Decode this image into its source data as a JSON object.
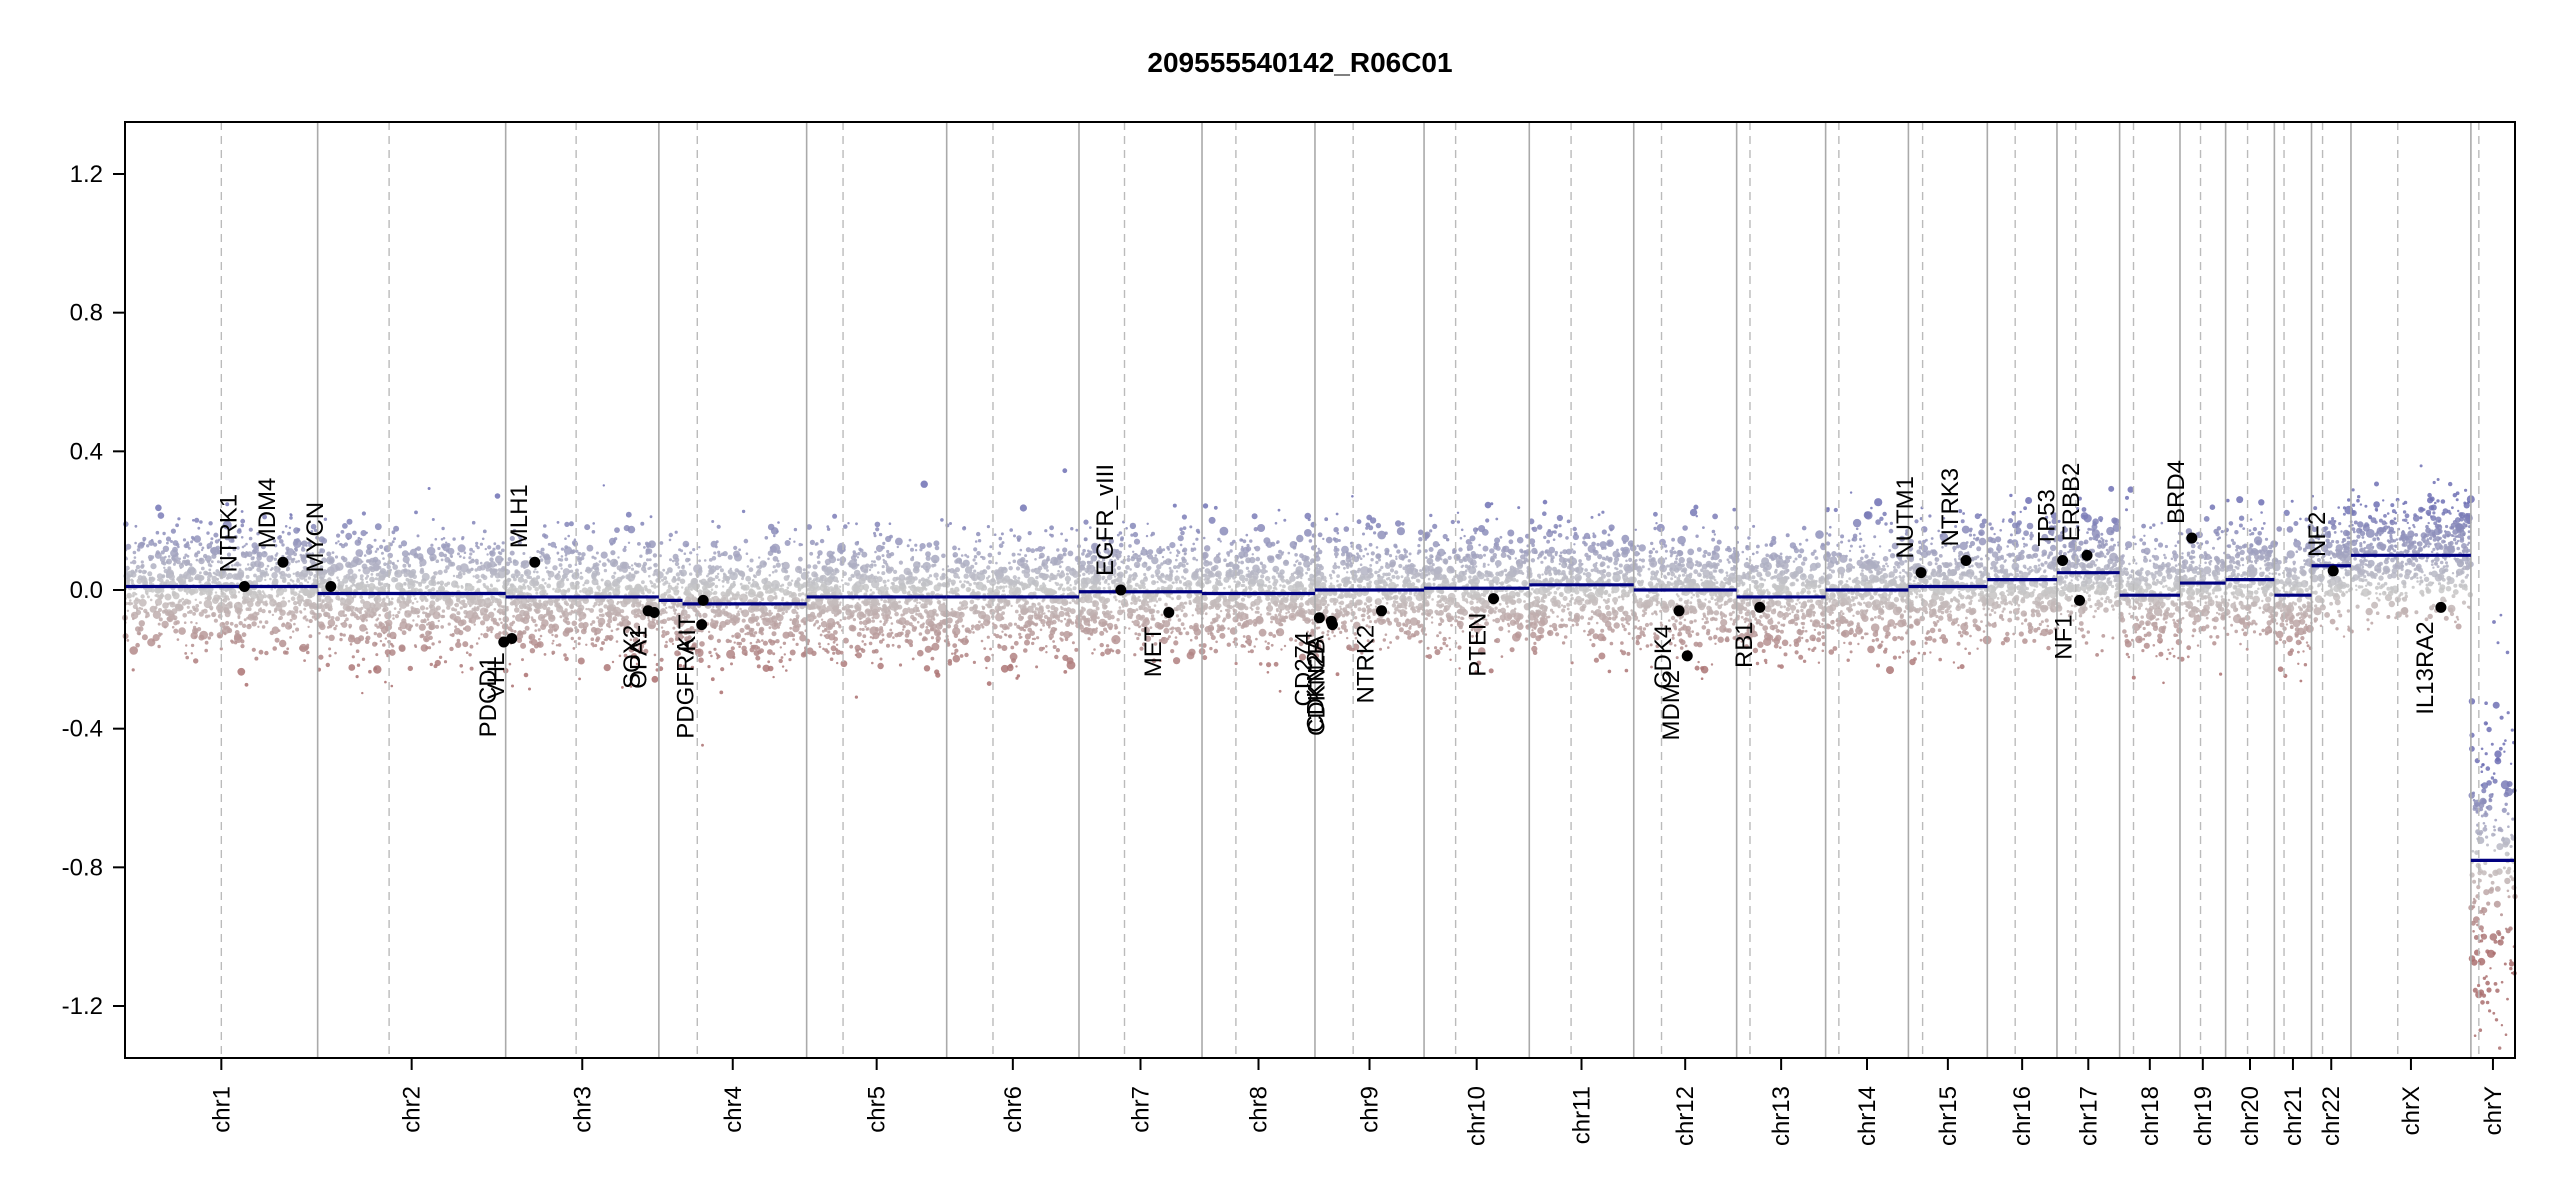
{
  "chart_data": {
    "type": "scatter",
    "title": "209555540142_R06C01",
    "xlabel": "",
    "ylabel": "",
    "ylim": [
      -1.35,
      1.35
    ],
    "y_ticks": [
      -1.2,
      -0.8,
      -0.4,
      0.0,
      0.4,
      0.8,
      1.2
    ],
    "y_tick_labels": [
      "-1.2",
      "-0.8",
      "-0.4",
      "0.0",
      "0.4",
      "0.8",
      "1.2"
    ],
    "grid": false,
    "colors": {
      "gain": "#7b7db8",
      "loss": "#b07878",
      "neutral": "#c8c8c8",
      "segment": "#000080",
      "gene_point": "#000000",
      "chrom_border": "#aaaaaa",
      "centromere": "#bbbbbb"
    },
    "chromosomes": [
      {
        "label": "chr1",
        "length": 249,
        "centromere": 0.5
      },
      {
        "label": "chr2",
        "length": 243,
        "centromere": 0.38
      },
      {
        "label": "chr3",
        "length": 198,
        "centromere": 0.46
      },
      {
        "label": "chr4",
        "length": 191,
        "centromere": 0.26
      },
      {
        "label": "chr5",
        "length": 181,
        "centromere": 0.26
      },
      {
        "label": "chr6",
        "length": 171,
        "centromere": 0.35
      },
      {
        "label": "chr7",
        "length": 159,
        "centromere": 0.37
      },
      {
        "label": "chr8",
        "length": 146,
        "centromere": 0.3
      },
      {
        "label": "chr9",
        "length": 141,
        "centromere": 0.35
      },
      {
        "label": "chr10",
        "length": 136,
        "centromere": 0.3
      },
      {
        "label": "chr11",
        "length": 135,
        "centromere": 0.4
      },
      {
        "label": "chr12",
        "length": 133,
        "centromere": 0.27
      },
      {
        "label": "chr13",
        "length": 115,
        "centromere": 0.15
      },
      {
        "label": "chr14",
        "length": 107,
        "centromere": 0.16
      },
      {
        "label": "chr15",
        "length": 102,
        "centromere": 0.18
      },
      {
        "label": "chr16",
        "length": 90,
        "centromere": 0.4
      },
      {
        "label": "chr17",
        "length": 81,
        "centromere": 0.3
      },
      {
        "label": "chr18",
        "length": 78,
        "centromere": 0.23
      },
      {
        "label": "chr19",
        "length": 59,
        "centromere": 0.45
      },
      {
        "label": "chr20",
        "length": 63,
        "centromere": 0.45
      },
      {
        "label": "chr21",
        "length": 48,
        "centromere": 0.26
      },
      {
        "label": "chr22",
        "length": 51,
        "centromere": 0.28
      },
      {
        "label": "chrX",
        "length": 155,
        "centromere": 0.39
      },
      {
        "label": "chrY",
        "length": 57,
        "centromere": 0.18
      }
    ],
    "segments": [
      {
        "chrom": "chr1",
        "start": 0.0,
        "end": 1.0,
        "value": 0.01
      },
      {
        "chrom": "chr2",
        "start": 0.0,
        "end": 1.0,
        "value": -0.01
      },
      {
        "chrom": "chr3",
        "start": 0.0,
        "end": 1.0,
        "value": -0.02
      },
      {
        "chrom": "chr4",
        "start": 0.0,
        "end": 0.16,
        "value": -0.03
      },
      {
        "chrom": "chr4",
        "start": 0.16,
        "end": 1.0,
        "value": -0.04
      },
      {
        "chrom": "chr5",
        "start": 0.0,
        "end": 1.0,
        "value": -0.02
      },
      {
        "chrom": "chr6",
        "start": 0.0,
        "end": 1.0,
        "value": -0.02
      },
      {
        "chrom": "chr7",
        "start": 0.0,
        "end": 1.0,
        "value": -0.005
      },
      {
        "chrom": "chr8",
        "start": 0.0,
        "end": 1.0,
        "value": -0.01
      },
      {
        "chrom": "chr9",
        "start": 0.0,
        "end": 1.0,
        "value": 0.0
      },
      {
        "chrom": "chr10",
        "start": 0.0,
        "end": 1.0,
        "value": 0.005
      },
      {
        "chrom": "chr11",
        "start": 0.0,
        "end": 1.0,
        "value": 0.015
      },
      {
        "chrom": "chr12",
        "start": 0.0,
        "end": 1.0,
        "value": 0.0
      },
      {
        "chrom": "chr13",
        "start": 0.0,
        "end": 1.0,
        "value": -0.02
      },
      {
        "chrom": "chr14",
        "start": 0.0,
        "end": 1.0,
        "value": 0.0
      },
      {
        "chrom": "chr15",
        "start": 0.0,
        "end": 1.0,
        "value": 0.01
      },
      {
        "chrom": "chr16",
        "start": 0.0,
        "end": 1.0,
        "value": 0.03
      },
      {
        "chrom": "chr17",
        "start": 0.0,
        "end": 1.0,
        "value": 0.05
      },
      {
        "chrom": "chr18",
        "start": 0.0,
        "end": 1.0,
        "value": -0.015
      },
      {
        "chrom": "chr19",
        "start": 0.0,
        "end": 1.0,
        "value": 0.02
      },
      {
        "chrom": "chr20",
        "start": 0.0,
        "end": 1.0,
        "value": 0.03
      },
      {
        "chrom": "chr21",
        "start": 0.0,
        "end": 1.0,
        "value": -0.015
      },
      {
        "chrom": "chr22",
        "start": 0.0,
        "end": 1.0,
        "value": 0.07
      },
      {
        "chrom": "chrX",
        "start": 0.0,
        "end": 1.0,
        "value": 0.1
      },
      {
        "chrom": "chrY",
        "start": 0.0,
        "end": 1.0,
        "value": -0.78
      }
    ],
    "genes": [
      {
        "name": "NTRK1",
        "chrom": "chr1",
        "pos": 0.62,
        "value": 0.01,
        "label_side": "up"
      },
      {
        "name": "MDM4",
        "chrom": "chr1",
        "pos": 0.82,
        "value": 0.08,
        "label_side": "up"
      },
      {
        "name": "MYCN",
        "chrom": "chr2",
        "pos": 0.07,
        "value": 0.01,
        "label_side": "up"
      },
      {
        "name": "PDCD1",
        "chrom": "chr2",
        "pos": 0.99,
        "value": -0.15,
        "label_side": "down"
      },
      {
        "name": "VHL",
        "chrom": "chr3",
        "pos": 0.04,
        "value": -0.14,
        "label_side": "down"
      },
      {
        "name": "MLH1",
        "chrom": "chr3",
        "pos": 0.19,
        "value": 0.08,
        "label_side": "up"
      },
      {
        "name": "SOX2",
        "chrom": "chr3",
        "pos": 0.93,
        "value": -0.06,
        "label_side": "down"
      },
      {
        "name": "OPA1",
        "chrom": "chr3",
        "pos": 0.97,
        "value": -0.065,
        "label_side": "down"
      },
      {
        "name": "PDGFRA",
        "chrom": "chr4",
        "pos": 0.29,
        "value": -0.1,
        "label_side": "down"
      },
      {
        "name": "KIT",
        "chrom": "chr4",
        "pos": 0.3,
        "value": -0.03,
        "label_side": "down"
      },
      {
        "name": "EGFR_vIII",
        "chrom": "chr7",
        "pos": 0.34,
        "value": 0.0,
        "label_side": "up"
      },
      {
        "name": "MET",
        "chrom": "chr7",
        "pos": 0.73,
        "value": -0.065,
        "label_side": "down"
      },
      {
        "name": "CD274",
        "chrom": "chr9",
        "pos": 0.04,
        "value": -0.08,
        "label_side": "down"
      },
      {
        "name": "CDKN2A",
        "chrom": "chr9",
        "pos": 0.15,
        "value": -0.09,
        "label_side": "down"
      },
      {
        "name": "CDKN2B",
        "chrom": "chr9",
        "pos": 0.16,
        "value": -0.1,
        "label_side": "down"
      },
      {
        "name": "NTRK2",
        "chrom": "chr9",
        "pos": 0.61,
        "value": -0.06,
        "label_side": "down"
      },
      {
        "name": "PTEN",
        "chrom": "chr10",
        "pos": 0.66,
        "value": -0.025,
        "label_side": "down"
      },
      {
        "name": "CDK4",
        "chrom": "chr12",
        "pos": 0.44,
        "value": -0.06,
        "label_side": "down"
      },
      {
        "name": "MDM2",
        "chrom": "chr12",
        "pos": 0.52,
        "value": -0.19,
        "label_side": "down"
      },
      {
        "name": "RB1",
        "chrom": "chr13",
        "pos": 0.26,
        "value": -0.05,
        "label_side": "down"
      },
      {
        "name": "NUTM1",
        "chrom": "chr15",
        "pos": 0.16,
        "value": 0.05,
        "label_side": "up"
      },
      {
        "name": "NTRK3",
        "chrom": "chr15",
        "pos": 0.73,
        "value": 0.085,
        "label_side": "up"
      },
      {
        "name": "TP53",
        "chrom": "chr17",
        "pos": 0.09,
        "value": 0.085,
        "label_side": "up"
      },
      {
        "name": "NF1",
        "chrom": "chr17",
        "pos": 0.36,
        "value": -0.03,
        "label_side": "down"
      },
      {
        "name": "ERBB2",
        "chrom": "chr17",
        "pos": 0.48,
        "value": 0.1,
        "label_side": "up"
      },
      {
        "name": "BRD4",
        "chrom": "chr19",
        "pos": 0.26,
        "value": 0.15,
        "label_side": "up"
      },
      {
        "name": "NF2",
        "chrom": "chr22",
        "pos": 0.55,
        "value": 0.055,
        "label_side": "up"
      },
      {
        "name": "IL13RA2",
        "chrom": "chrX",
        "pos": 0.75,
        "value": -0.05,
        "label_side": "down"
      }
    ]
  }
}
